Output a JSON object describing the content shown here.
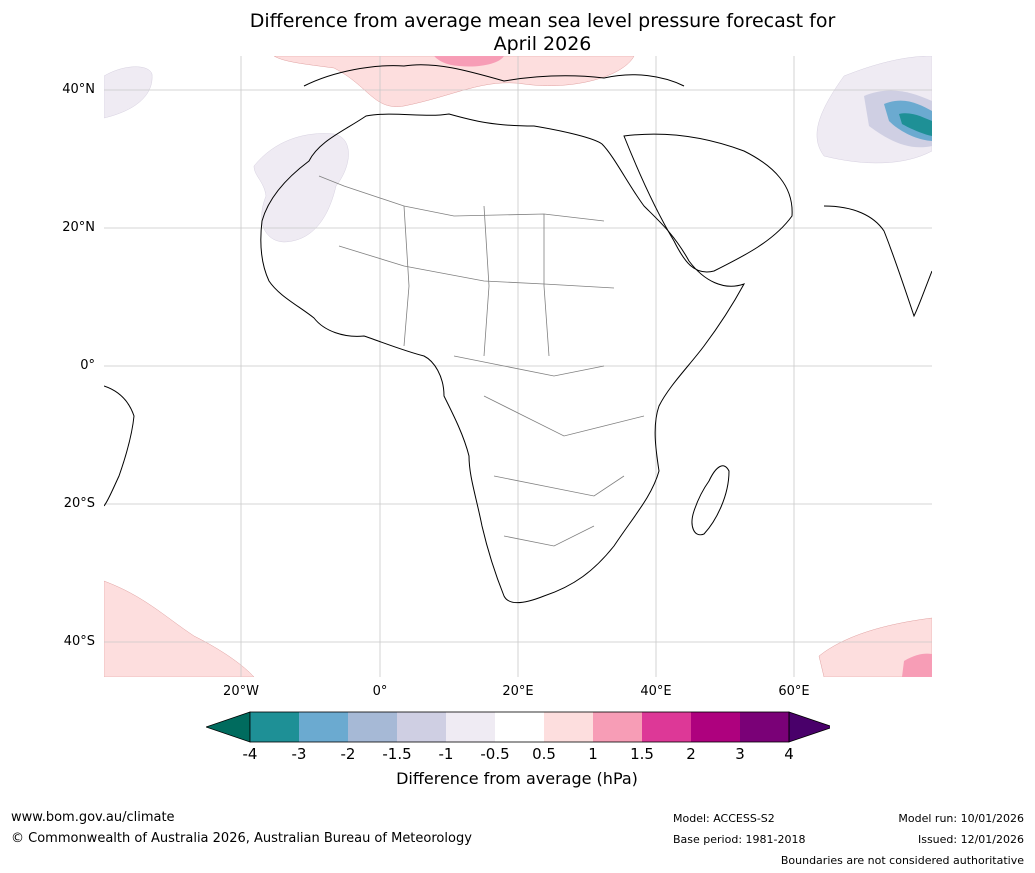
{
  "title_line1": "Difference from average mean sea level pressure forecast for",
  "title_line2": "April 2026",
  "lat_labels": [
    "40°N",
    "20°N",
    "0°",
    "20°S",
    "40°S"
  ],
  "lon_labels": [
    "20°W",
    "0°",
    "20°E",
    "40°E",
    "60°E"
  ],
  "colorbar": {
    "label": "Difference from average (hPa)",
    "ticks": [
      "-4",
      "-3",
      "-2",
      "-1.5",
      "-1",
      "-0.5",
      "0.5",
      "1",
      "1.5",
      "2",
      "3",
      "4"
    ],
    "colors": [
      "#006b5e",
      "#1e9096",
      "#6baad0",
      "#a6b9d6",
      "#cfcfe3",
      "#efebf3",
      "#ffffff",
      "#fddede",
      "#f79db6",
      "#dd3897",
      "#ae017e",
      "#7a0177",
      "#49006a"
    ]
  },
  "footer": {
    "site": "www.bom.gov.au/climate",
    "copyright": "© Commonwealth of Australia 2026, Australian Bureau of Meteorology",
    "model": "Model: ACCESS-S2",
    "base_period": "Base period: 1981-2018",
    "model_run": "Model run: 10/01/2026",
    "issued": "Issued: 12/01/2026",
    "disclaimer": "Boundaries are not considered authoritative"
  }
}
